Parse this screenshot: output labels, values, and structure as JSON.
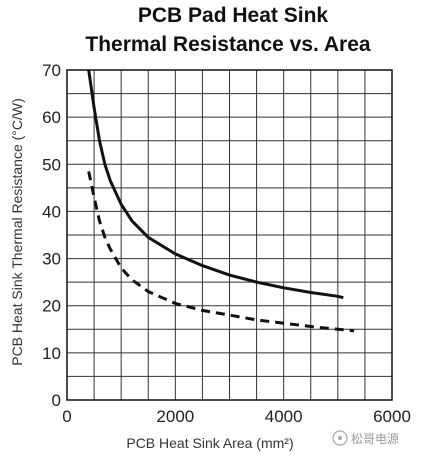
{
  "chart_data": {
    "type": "line",
    "title": "PCB Pad Heat Sink",
    "subtitle": "Thermal Resistance vs. Area",
    "xlabel": "PCB Heat Sink Area (mm²)",
    "ylabel": "PCB Heat Sink Thermal Resistance (°C/W)",
    "xlim": [
      0,
      6000
    ],
    "ylim": [
      0,
      70
    ],
    "x_major_ticks": [
      0,
      2000,
      4000,
      6000
    ],
    "y_major_ticks": [
      0,
      10,
      20,
      30,
      40,
      50,
      60,
      70
    ],
    "x_tick_labels": [
      "0",
      "2000",
      "4000",
      "6000"
    ],
    "y_tick_labels": [
      "0",
      "10",
      "20",
      "30",
      "40",
      "50",
      "60",
      "70"
    ],
    "grid": true,
    "series": [
      {
        "style": "solid",
        "x": [
          400,
          500,
          600,
          700,
          800,
          1000,
          1200,
          1500,
          2000,
          2500,
          3000,
          3500,
          4000,
          4500,
          5000,
          5100
        ],
        "y": [
          70,
          62,
          55,
          50,
          46.5,
          41.5,
          38,
          34.5,
          31,
          28.5,
          26.5,
          25,
          23.8,
          22.8,
          22,
          21.7
        ]
      },
      {
        "style": "dashed",
        "x": [
          400,
          500,
          600,
          700,
          800,
          1000,
          1200,
          1500,
          2000,
          2500,
          3000,
          3500,
          4000,
          4500,
          5000,
          5300
        ],
        "y": [
          48.5,
          43,
          38,
          34.5,
          32,
          28,
          25.5,
          23,
          20.5,
          19,
          18,
          17,
          16.3,
          15.6,
          15,
          14.7
        ]
      }
    ]
  },
  "watermark": {
    "text": "松哥电源"
  }
}
